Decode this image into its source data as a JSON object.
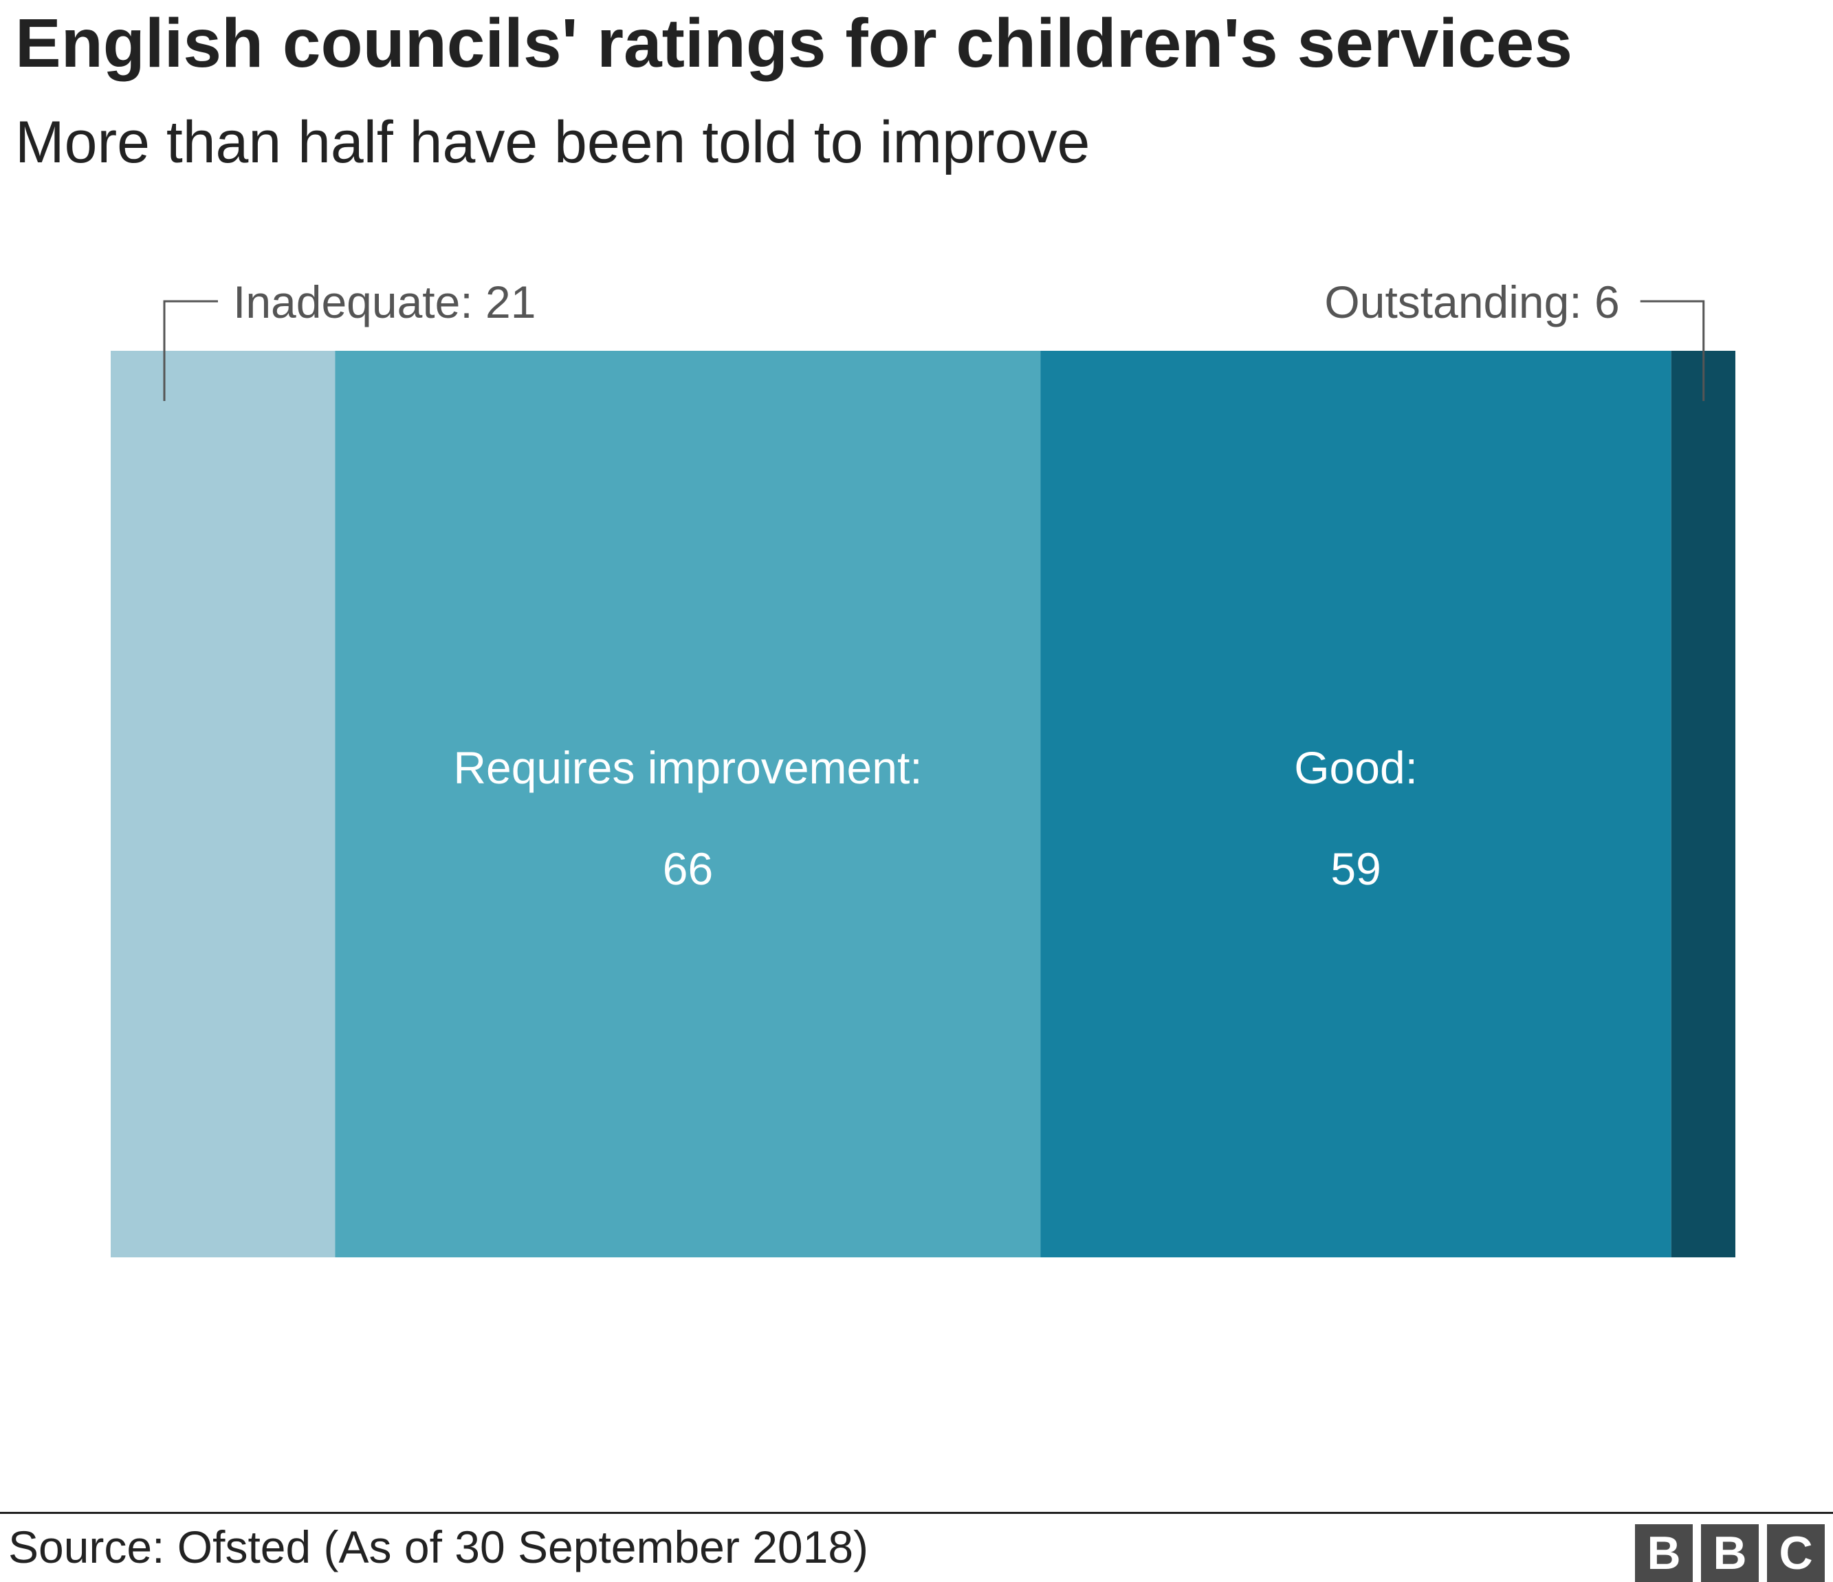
{
  "header": {
    "title": "English councils' ratings for children's services",
    "subtitle": "More than half have been told to improve"
  },
  "chart_data": {
    "type": "bar",
    "orientation": "horizontal-stacked-100",
    "title": "English councils' ratings for children's services",
    "subtitle": "More than half have been told to improve",
    "xlabel": "",
    "ylabel": "",
    "total": 152,
    "series": [
      {
        "name": "Inadequate",
        "value": 21,
        "color": "#a4cbd8",
        "label_position": "outside-left",
        "label_text": "Inadequate: 21",
        "label_color": "#555555"
      },
      {
        "name": "Requires improvement",
        "value": 66,
        "color": "#4ea8bc",
        "label_position": "inside",
        "label_text": "Requires improvement:",
        "value_text": "66",
        "label_color": "#ffffff"
      },
      {
        "name": "Good",
        "value": 59,
        "color": "#1681a0",
        "label_position": "inside",
        "label_text": "Good:",
        "value_text": "59",
        "label_color": "#ffffff"
      },
      {
        "name": "Outstanding",
        "value": 6,
        "color": "#0d4d61",
        "label_position": "outside-right",
        "label_text": "Outstanding: 6",
        "label_color": "#555555"
      }
    ],
    "grid": false,
    "legend": "none"
  },
  "footer": {
    "source": "Source: Ofsted (As of 30 September 2018)",
    "logo_letters": [
      "B",
      "B",
      "C"
    ]
  }
}
